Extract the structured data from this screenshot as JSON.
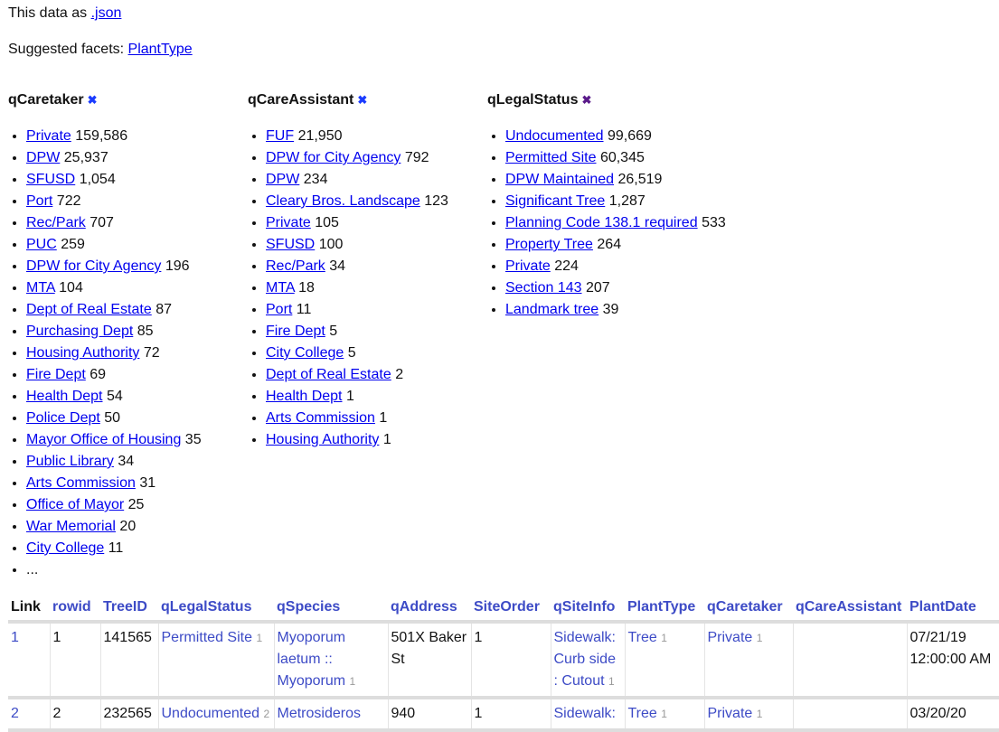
{
  "header": {
    "data_as": "This data as ",
    "json_link": ".json",
    "suggested": "Suggested facets: ",
    "suggested_links": [
      "PlantType"
    ]
  },
  "facets": [
    {
      "title": "qCaretaker",
      "close_icon": "x-icon",
      "close_color": "#1a3bff",
      "items": [
        [
          "Private",
          "159,586"
        ],
        [
          "DPW",
          "25,937"
        ],
        [
          "SFUSD",
          "1,054"
        ],
        [
          "Port",
          "722"
        ],
        [
          "Rec/Park",
          "707"
        ],
        [
          "PUC",
          "259"
        ],
        [
          "DPW for City Agency",
          "196"
        ],
        [
          "MTA",
          "104"
        ],
        [
          "Dept of Real Estate",
          "87"
        ],
        [
          "Purchasing Dept",
          "85"
        ],
        [
          "Housing Authority",
          "72"
        ],
        [
          "Fire Dept",
          "69"
        ],
        [
          "Health Dept",
          "54"
        ],
        [
          "Police Dept",
          "50"
        ],
        [
          "Mayor Office of Housing",
          "35"
        ],
        [
          "Public Library",
          "34"
        ],
        [
          "Arts Commission",
          "31"
        ],
        [
          "Office of Mayor",
          "25"
        ],
        [
          "War Memorial",
          "20"
        ],
        [
          "City College",
          "11"
        ]
      ],
      "more": "..."
    },
    {
      "title": "qCareAssistant",
      "close_icon": "x-icon",
      "close_color": "#1a3bff",
      "items": [
        [
          "FUF",
          "21,950"
        ],
        [
          "DPW for City Agency",
          "792"
        ],
        [
          "DPW",
          "234"
        ],
        [
          "Cleary Bros. Landscape",
          "123"
        ],
        [
          "Private",
          "105"
        ],
        [
          "SFUSD",
          "100"
        ],
        [
          "Rec/Park",
          "34"
        ],
        [
          "MTA",
          "18"
        ],
        [
          "Port",
          "11"
        ],
        [
          "Fire Dept",
          "5"
        ],
        [
          "City College",
          "5"
        ],
        [
          "Dept of Real Estate",
          "2"
        ],
        [
          "Health Dept",
          "1"
        ],
        [
          "Arts Commission",
          "1"
        ],
        [
          "Housing Authority",
          "1"
        ]
      ]
    },
    {
      "title": "qLegalStatus",
      "close_icon": "x-icon",
      "close_color": "#5a1a8a",
      "items": [
        [
          "Undocumented",
          "99,669"
        ],
        [
          "Permitted Site",
          "60,345"
        ],
        [
          "DPW Maintained",
          "26,519"
        ],
        [
          "Significant Tree",
          "1,287"
        ],
        [
          "Planning Code 138.1 required",
          "533"
        ],
        [
          "Property Tree",
          "264"
        ],
        [
          "Private",
          "224"
        ],
        [
          "Section 143",
          "207"
        ],
        [
          "Landmark tree",
          "39"
        ]
      ]
    }
  ],
  "table": {
    "columns": [
      "Link",
      "rowid",
      "TreeID",
      "qLegalStatus",
      "qSpecies",
      "qAddress",
      "SiteOrder",
      "qSiteInfo",
      "PlantType",
      "qCaretaker",
      "qCareAssistant",
      "PlantDate"
    ],
    "rows": [
      {
        "link": "1",
        "rowid": "1",
        "treeid": "141565",
        "legal": "Permitted Site",
        "legal_n": "1",
        "species": "Myoporum laetum :: Myoporum",
        "species_n": "1",
        "address": "501X Baker St",
        "siteorder": "1",
        "siteinfo": "Sidewalk: Curb side : Cutout",
        "siteinfo_n": "1",
        "planttype": "Tree",
        "planttype_n": "1",
        "caretaker": "Private",
        "caretaker_n": "1",
        "assistant": "",
        "plantdate": "07/21/19 12:00:00 AM"
      },
      {
        "link": "2",
        "rowid": "2",
        "treeid": "232565",
        "legal": "Undocumented",
        "legal_n": "2",
        "species": "Metrosideros",
        "species_n": "",
        "address": "940",
        "siteorder": "1",
        "siteinfo": "Sidewalk:",
        "siteinfo_n": "",
        "planttype": "Tree",
        "planttype_n": "1",
        "caretaker": "Private",
        "caretaker_n": "1",
        "assistant": "",
        "plantdate": "03/20/20"
      }
    ]
  }
}
